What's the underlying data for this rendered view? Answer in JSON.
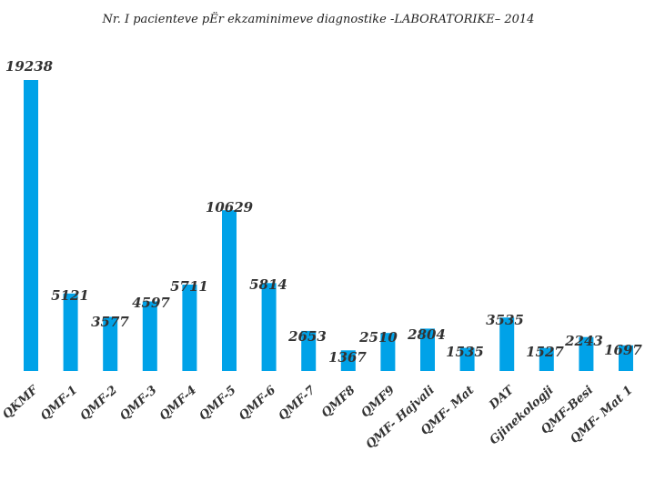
{
  "chart_data": {
    "type": "bar",
    "title": "Nr. I pacienteve pËr ekzaminimeve diagnostike -LABORATORIKE– 2014",
    "categories": [
      "QKMF",
      "QMF-1",
      "QMF-2",
      "QMF-3",
      "QMF-4",
      "QMF-5",
      "QMF-6",
      "QMF-7",
      "QMF8",
      "QMF9",
      "QMF- Hajvali",
      "QMF- Mat",
      "DAT",
      "Gjinekologji",
      "QMF-Besi",
      "QMF- Mat 1"
    ],
    "values": [
      19238,
      5121,
      3577,
      4597,
      5711,
      10629,
      5814,
      2653,
      1367,
      2510,
      2804,
      1535,
      3535,
      1527,
      2243,
      1697
    ],
    "value_labels": [
      "19238",
      "5121",
      "3577",
      "4597",
      "5711",
      "10629",
      "5814",
      "2653",
      "1367",
      "2510",
      "2804",
      "1535",
      "3535",
      "1527",
      "2243",
      "1697"
    ],
    "xlabel": "",
    "ylabel": "",
    "ylim": [
      0,
      19238
    ],
    "grid": false,
    "legend": "none",
    "bar_color": "#00a2e8"
  }
}
